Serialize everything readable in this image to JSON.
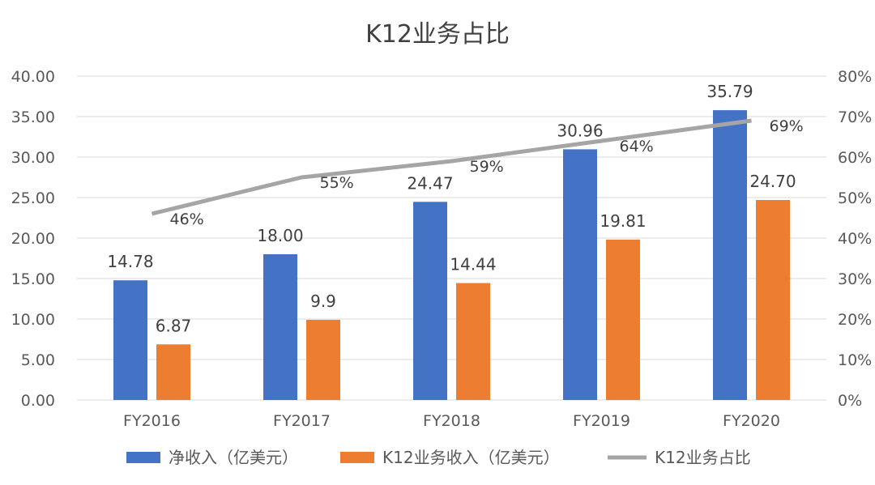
{
  "chart_data": {
    "type": "bar+line",
    "title": "K12业务占比",
    "categories": [
      "FY2016",
      "FY2017",
      "FY2018",
      "FY2019",
      "FY2020"
    ],
    "series": [
      {
        "name": "净收入（亿美元）",
        "type": "bar",
        "axis": "left",
        "color": "#4472C4",
        "values": [
          14.78,
          18.0,
          24.47,
          30.96,
          35.79
        ],
        "labels": [
          "14.78",
          "18.00",
          "24.47",
          "30.96",
          "35.79"
        ]
      },
      {
        "name": "K12业务收入（亿美元）",
        "type": "bar",
        "axis": "left",
        "color": "#ED7D31",
        "values": [
          6.87,
          9.9,
          14.44,
          19.81,
          24.7
        ],
        "labels": [
          "6.87",
          "9.9",
          "14.44",
          "19.81",
          "24.70"
        ]
      },
      {
        "name": "K12业务占比",
        "type": "line",
        "axis": "right",
        "color": "#A5A5A5",
        "values": [
          46,
          55,
          59,
          64,
          69
        ],
        "labels": [
          "46%",
          "55%",
          "59%",
          "64%",
          "69%"
        ]
      }
    ],
    "y_left": {
      "min": 0,
      "max": 40,
      "step": 5,
      "tick_labels": [
        "0.00",
        "5.00",
        "10.00",
        "15.00",
        "20.00",
        "25.00",
        "30.00",
        "35.00",
        "40.00"
      ]
    },
    "y_right": {
      "min": 0,
      "max": 80,
      "step": 10,
      "tick_labels": [
        "0%",
        "10%",
        "20%",
        "30%",
        "40%",
        "50%",
        "60%",
        "70%",
        "80%"
      ]
    },
    "grid": true,
    "legend_position": "bottom",
    "colors": {
      "axis_text": "#595959",
      "title": "#404040",
      "grid": "#D9D9D9"
    }
  }
}
